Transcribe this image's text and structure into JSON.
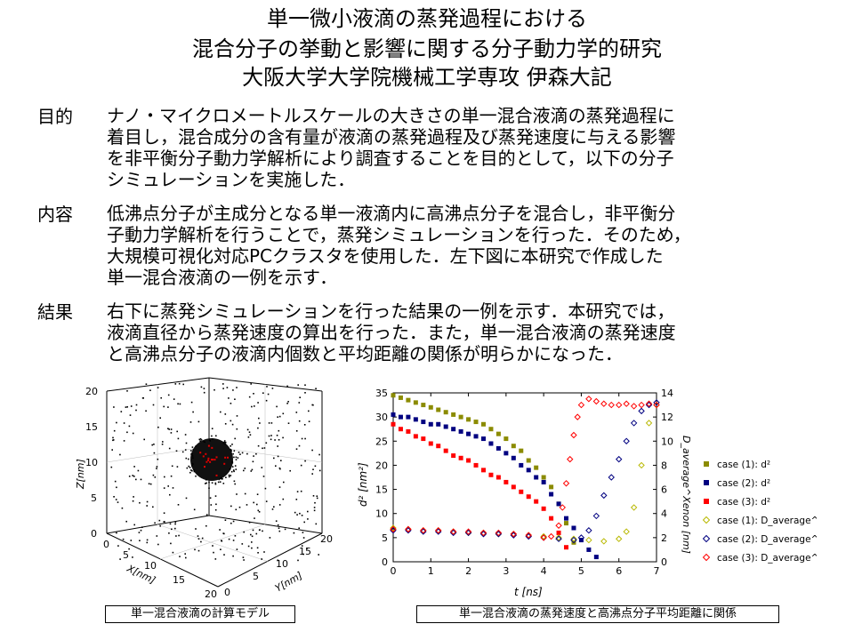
{
  "title": {
    "line1": "単一微小液滴の蒸発過程における",
    "line2": "混合分子の挙動と影響に関する分子動力学的研究",
    "line3": "大阪大学大学院機械工学専攻 伊森大記"
  },
  "sections": [
    {
      "label": "目的",
      "text": "ナノ・マイクロメートルスケールの大きさの単一混合液滴の蒸発過程に\n着目し，混合成分の含有量が液滴の蒸発過程及び蒸発速度に与える影響\nを非平衡分子動力学解析により調査することを目的として，以下の分子\nシミュレーションを実施した．"
    },
    {
      "label": "内容",
      "text": "低沸点分子が主成分となる単一液滴内に高沸点分子を混合し，非平衡分\n子動力学解析を行うことで，蒸発シミュレーションを行った．そのため，\n大規模可視化対応PCクラスタを使用した．左下図に本研究で作成した\n単一混合液滴の一例を示す．"
    },
    {
      "label": "結果",
      "text": "  右下に蒸発シミュレーションを行った結果の一例を示す．本研究では，\n液滴直径から蒸発速度の算出を行った．また，単一混合液滴の蒸発速度\nと高沸点分子の液滴内個数と平均距離の関係が明らかになった．"
    }
  ],
  "captions": {
    "left": "単一混合液滴の計算モデル",
    "right": "単一混合液滴の蒸発速度と高沸点分子平均距離に関係"
  },
  "model_axes": {
    "z_label": "Z[nm]",
    "x_label": "X[nm]",
    "y_label": "Y[nm]",
    "z_ticks": [
      "20",
      "15",
      "10",
      "5",
      "0"
    ],
    "x_ticks": [
      "0",
      "5",
      "10",
      "15",
      "20"
    ],
    "y_ticks": [
      "0",
      "5",
      "10",
      "15",
      "20"
    ]
  },
  "chart_data": {
    "type": "scatter",
    "xlabel": "t [ns]",
    "ylabel": "d² [nm²]",
    "y2label": "D_average^Xenon [nm]",
    "xlim": [
      0,
      7
    ],
    "ylim": [
      0,
      35
    ],
    "y2lim": [
      0,
      14
    ],
    "x_ticks": [
      "0",
      "1",
      "2",
      "3",
      "4",
      "5",
      "6",
      "7"
    ],
    "y_ticks": [
      "0",
      "5",
      "10",
      "15",
      "20",
      "25",
      "30",
      "35"
    ],
    "y2_ticks": [
      "0",
      "2",
      "4",
      "6",
      "8",
      "10",
      "12",
      "14"
    ],
    "legend_position": "right",
    "series": [
      {
        "name": "case (1): d²",
        "axis": "left",
        "marker": "square",
        "color": "#8b8b00",
        "x": [
          0,
          0.2,
          0.4,
          0.6,
          0.8,
          1.0,
          1.2,
          1.4,
          1.6,
          1.8,
          2.0,
          2.2,
          2.4,
          2.6,
          2.8,
          3.0,
          3.2,
          3.4,
          3.6,
          3.8,
          4.0,
          4.2,
          4.4,
          4.6,
          4.8
        ],
        "y": [
          34.5,
          34.0,
          33.5,
          33.0,
          32.5,
          32.0,
          31.5,
          31.0,
          30.5,
          30.0,
          29.5,
          29.0,
          28.5,
          27.5,
          26.5,
          25.5,
          24.0,
          23.0,
          21.0,
          19.5,
          17.5,
          15.5,
          12.0,
          8.0,
          4.0
        ]
      },
      {
        "name": "case (2): d²",
        "axis": "left",
        "marker": "square",
        "color": "#000080",
        "x": [
          0,
          0.2,
          0.4,
          0.6,
          0.8,
          1.0,
          1.2,
          1.4,
          1.6,
          1.8,
          2.0,
          2.2,
          2.4,
          2.6,
          2.8,
          3.0,
          3.2,
          3.4,
          3.6,
          3.8,
          4.0,
          4.2,
          4.4,
          4.6,
          4.8,
          5.0,
          5.2,
          5.4
        ],
        "y": [
          30.5,
          30.0,
          30.0,
          29.5,
          29.0,
          28.5,
          28.5,
          28.0,
          27.5,
          27.0,
          26.5,
          26.0,
          25.5,
          24.5,
          23.5,
          22.5,
          21.5,
          20.0,
          19.0,
          17.5,
          16.5,
          14.0,
          12.0,
          9.0,
          7.0,
          4.5,
          2.5,
          1.0
        ]
      },
      {
        "name": "case (3): d²",
        "axis": "left",
        "marker": "square",
        "color": "#ff0000",
        "x": [
          0,
          0.2,
          0.4,
          0.6,
          0.8,
          1.0,
          1.2,
          1.4,
          1.6,
          1.8,
          2.0,
          2.2,
          2.4,
          2.6,
          2.8,
          3.0,
          3.2,
          3.4,
          3.6,
          3.8,
          4.0,
          4.2,
          4.4,
          4.6
        ],
        "y": [
          28.5,
          27.5,
          27.0,
          26.0,
          25.5,
          24.5,
          24.0,
          23.0,
          22.0,
          21.5,
          21.0,
          20.0,
          19.0,
          18.0,
          17.5,
          16.5,
          15.5,
          14.5,
          13.5,
          12.5,
          11.0,
          9.0,
          6.0,
          3.0
        ]
      },
      {
        "name": "case (1): D_average^Xenon",
        "axis": "right",
        "marker": "diamond",
        "color": "#b8b800",
        "x": [
          0,
          0.4,
          0.8,
          1.2,
          1.6,
          2.0,
          2.4,
          2.8,
          3.2,
          3.6,
          4.0,
          4.4,
          4.8,
          5.2,
          5.6,
          6.0,
          6.2,
          6.4,
          6.6,
          6.8,
          7.0
        ],
        "y": [
          2.8,
          2.7,
          2.6,
          2.6,
          2.5,
          2.4,
          2.4,
          2.3,
          2.3,
          2.2,
          2.1,
          2.0,
          1.9,
          1.8,
          1.7,
          1.9,
          2.5,
          4.5,
          8.0,
          11.5,
          13.0
        ]
      },
      {
        "name": "case (2): D_average^Xenon",
        "axis": "right",
        "marker": "diamond",
        "color": "#000080",
        "x": [
          0,
          0.4,
          0.8,
          1.2,
          1.6,
          2.0,
          2.4,
          2.8,
          3.2,
          3.6,
          4.0,
          4.4,
          4.8,
          5.0,
          5.2,
          5.4,
          5.6,
          5.8,
          6.0,
          6.2,
          6.4,
          6.6,
          6.8,
          7.0
        ],
        "y": [
          2.6,
          2.6,
          2.5,
          2.5,
          2.4,
          2.4,
          2.3,
          2.3,
          2.2,
          2.1,
          2.0,
          1.9,
          1.8,
          2.0,
          2.6,
          3.8,
          5.5,
          7.0,
          8.5,
          10.0,
          11.5,
          12.5,
          13.0,
          13.2
        ]
      },
      {
        "name": "case (3): D_average^Xenon",
        "axis": "right",
        "marker": "diamond",
        "color": "#ff0000",
        "x": [
          0,
          0.4,
          0.8,
          1.2,
          1.6,
          2.0,
          2.4,
          2.8,
          3.2,
          3.6,
          4.0,
          4.2,
          4.4,
          4.5,
          4.6,
          4.7,
          4.8,
          4.9,
          5.0,
          5.2,
          5.4,
          5.6,
          5.8,
          6.0,
          6.2,
          6.4,
          6.6,
          6.8,
          7.0
        ],
        "y": [
          2.7,
          2.7,
          2.6,
          2.6,
          2.5,
          2.5,
          2.4,
          2.4,
          2.3,
          2.2,
          2.0,
          2.1,
          3.0,
          4.5,
          6.5,
          8.5,
          10.5,
          12.0,
          13.0,
          13.5,
          13.3,
          13.1,
          13.0,
          13.0,
          13.1,
          12.9,
          13.0,
          13.1,
          13.0
        ]
      }
    ]
  }
}
